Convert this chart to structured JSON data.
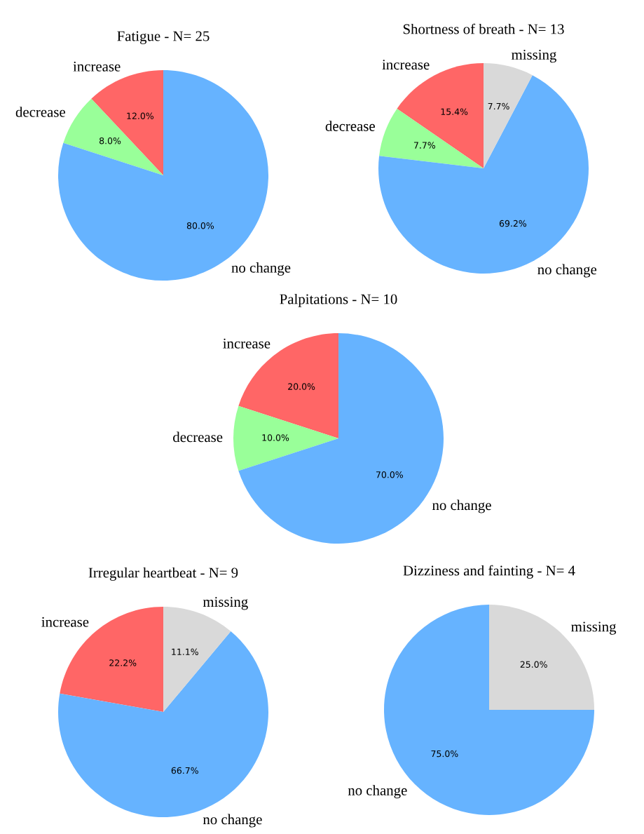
{
  "chart_data": [
    {
      "type": "pie",
      "title": "Fatigue - N= 25",
      "categories": [
        "increase",
        "decrease",
        "no change"
      ],
      "values": [
        12.0,
        8.0,
        80.0
      ],
      "colors": [
        "#ff6666",
        "#99ff99",
        "#66b3ff"
      ],
      "value_labels": [
        "12.0%",
        "8.0%",
        "80.0%"
      ]
    },
    {
      "type": "pie",
      "title": "Shortness of breath - N= 13",
      "categories": [
        "increase",
        "decrease",
        "no change",
        "missing"
      ],
      "values": [
        15.4,
        7.7,
        69.2,
        7.7
      ],
      "colors": [
        "#ff6666",
        "#99ff99",
        "#66b3ff",
        "#d9d9d9"
      ],
      "value_labels": [
        "15.4%",
        "7.7%",
        "69.2%",
        "7.7%"
      ]
    },
    {
      "type": "pie",
      "title": "Palpitations - N= 10",
      "categories": [
        "increase",
        "decrease",
        "no change"
      ],
      "values": [
        20.0,
        10.0,
        70.0
      ],
      "colors": [
        "#ff6666",
        "#99ff99",
        "#66b3ff"
      ],
      "value_labels": [
        "20.0%",
        "10.0%",
        "70.0%"
      ]
    },
    {
      "type": "pie",
      "title": "Irregular heartbeat - N= 9",
      "categories": [
        "increase",
        "no change",
        "missing"
      ],
      "values": [
        22.2,
        66.7,
        11.1
      ],
      "colors": [
        "#ff6666",
        "#66b3ff",
        "#d9d9d9"
      ],
      "value_labels": [
        "22.2%",
        "66.7%",
        "11.1%"
      ]
    },
    {
      "type": "pie",
      "title": "Dizziness and fainting - N= 4",
      "categories": [
        "no change",
        "missing"
      ],
      "values": [
        75.0,
        25.0
      ],
      "colors": [
        "#66b3ff",
        "#d9d9d9"
      ],
      "value_labels": [
        "75.0%",
        "25.0%"
      ]
    }
  ]
}
